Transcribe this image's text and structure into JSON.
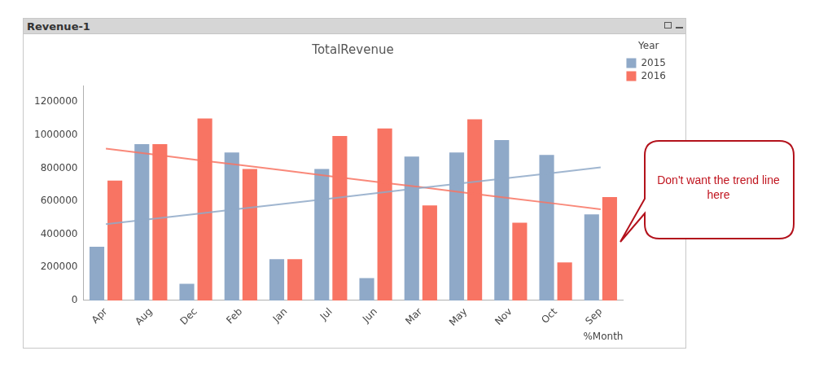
{
  "window_title": "Revenue-1",
  "annotations": [
    "Don't want the trend line here"
  ],
  "chart_data": {
    "type": "bar",
    "title": "TotalRevenue",
    "x_label": "%Month",
    "legend_title": "Year",
    "legend": "top-right",
    "grid": false,
    "categories": [
      "Apr",
      "Aug",
      "Dec",
      "Feb",
      "Jan",
      "Jul",
      "Jun",
      "Mar",
      "May",
      "Nov",
      "Oct",
      "Sep"
    ],
    "ylim": [
      0,
      1300000
    ],
    "yticks": [
      0,
      200000,
      400000,
      600000,
      800000,
      1000000,
      1200000
    ],
    "series": [
      {
        "name": "2015",
        "color": "#8fa9c8",
        "values": [
          325000,
          945000,
          100000,
          895000,
          250000,
          795000,
          135000,
          870000,
          895000,
          970000,
          880000,
          520000
        ],
        "trend": [
          461000,
          492000,
          523000,
          555000,
          586000,
          617000,
          648000,
          680000,
          711000,
          742000,
          773000,
          805000
        ]
      },
      {
        "name": "2016",
        "color": "#f87463",
        "values": [
          725000,
          945000,
          1100000,
          795000,
          250000,
          995000,
          1040000,
          575000,
          1095000,
          470000,
          230000,
          625000
        ],
        "trend": [
          918000,
          885000,
          851000,
          818000,
          785000,
          751000,
          718000,
          685000,
          651000,
          618000,
          585000,
          551000
        ]
      }
    ]
  }
}
